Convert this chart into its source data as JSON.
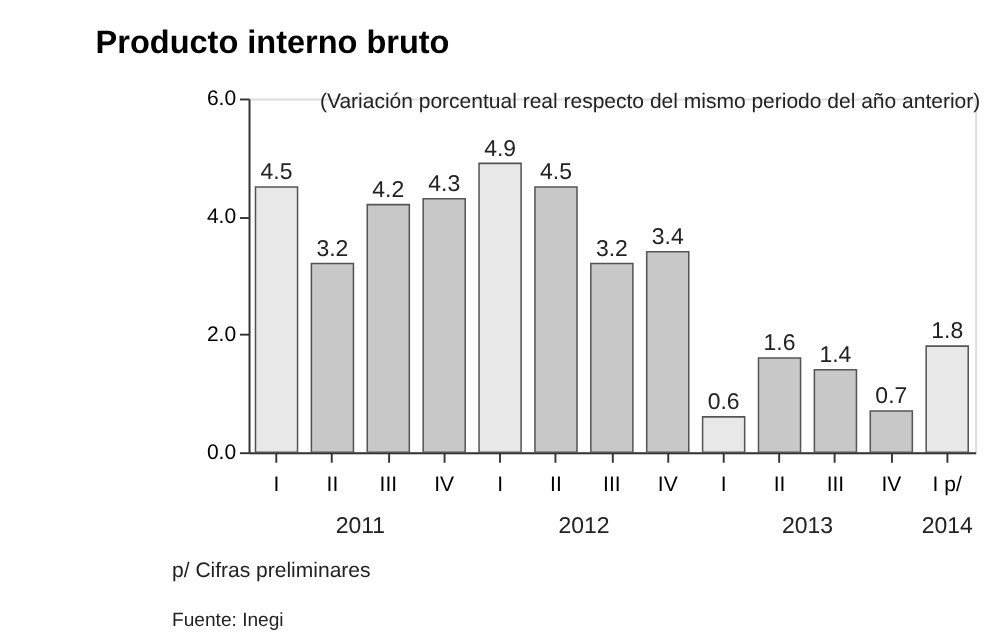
{
  "chart_data": {
    "type": "bar",
    "title": "Producto interno bruto",
    "subtitle": "(Variación porcentual real respecto del mismo periodo del año anterior)",
    "categories": [
      "I",
      "II",
      "III",
      "IV",
      "I",
      "II",
      "III",
      "IV",
      "I",
      "II",
      "III",
      "IV",
      "I p/"
    ],
    "values": [
      4.5,
      3.2,
      4.2,
      4.3,
      4.9,
      4.5,
      3.2,
      3.4,
      0.6,
      1.6,
      1.4,
      0.7,
      1.8
    ],
    "colors": [
      "#e8e8e8",
      "#c8c8c8",
      "#c8c8c8",
      "#c8c8c8",
      "#e8e8e8",
      "#c8c8c8",
      "#c8c8c8",
      "#c8c8c8",
      "#e8e8e8",
      "#c8c8c8",
      "#c8c8c8",
      "#c8c8c8",
      "#e8e8e8"
    ],
    "ylim": [
      0,
      6
    ],
    "yticks": [
      {
        "value": 0,
        "label": "0.0"
      },
      {
        "value": 2,
        "label": "2.0"
      },
      {
        "value": 4,
        "label": "4.0"
      },
      {
        "value": 6,
        "label": "6.0"
      }
    ],
    "data_labels": true,
    "grid": false,
    "legend": false,
    "annotations": [
      "2011",
      "2012",
      "2013",
      "2014",
      "p/ Cifras preliminares",
      "Fuente: Inegi"
    ]
  }
}
